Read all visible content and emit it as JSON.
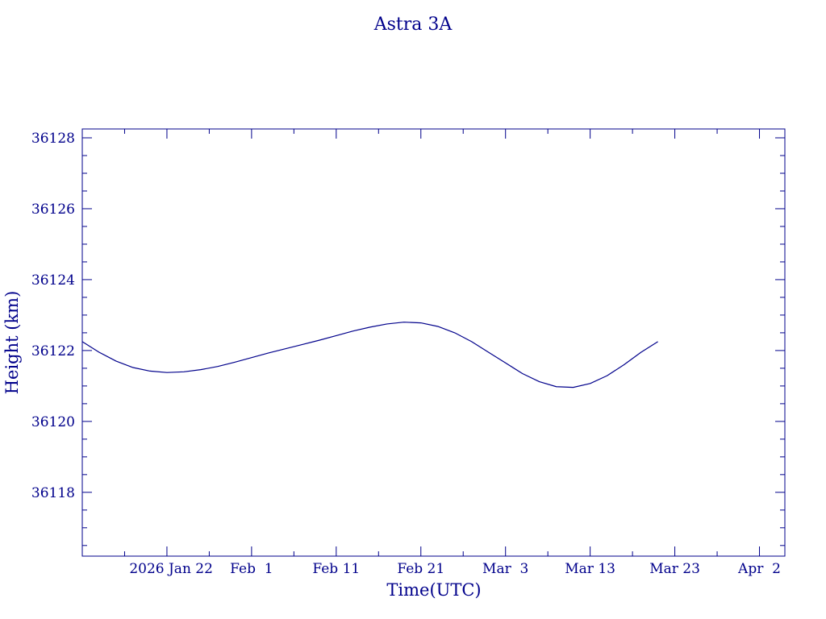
{
  "chart_data": {
    "type": "line",
    "title": "Astra 3A",
    "xlabel": "Time(UTC)",
    "ylabel": "Height (km)",
    "x_ticks": [
      {
        "date": "2026-01-22",
        "label": "2026 Jan 22"
      },
      {
        "date": "2026-02-01",
        "label": "Feb  1"
      },
      {
        "date": "2026-02-11",
        "label": "Feb 11"
      },
      {
        "date": "2026-02-21",
        "label": "Feb 21"
      },
      {
        "date": "2026-03-03",
        "label": "Mar  3"
      },
      {
        "date": "2026-03-13",
        "label": "Mar 13"
      },
      {
        "date": "2026-03-23",
        "label": "Mar 23"
      },
      {
        "date": "2026-04-02",
        "label": "Apr  2"
      }
    ],
    "xlim": [
      "2026-01-12",
      "2026-04-05"
    ],
    "y_ticks": [
      36118,
      36120,
      36122,
      36124,
      36126,
      36128
    ],
    "ylim": [
      36116.2,
      36128.25
    ],
    "grid": false,
    "series": [
      {
        "points": [
          {
            "x": "2026-01-12",
            "y": 36122.25
          },
          {
            "x": "2026-01-14",
            "y": 36121.95
          },
          {
            "x": "2026-01-16",
            "y": 36121.7
          },
          {
            "x": "2026-01-18",
            "y": 36121.52
          },
          {
            "x": "2026-01-20",
            "y": 36121.42
          },
          {
            "x": "2026-01-22",
            "y": 36121.38
          },
          {
            "x": "2026-01-24",
            "y": 36121.4
          },
          {
            "x": "2026-01-26",
            "y": 36121.46
          },
          {
            "x": "2026-01-28",
            "y": 36121.55
          },
          {
            "x": "2026-01-30",
            "y": 36121.67
          },
          {
            "x": "2026-02-01",
            "y": 36121.8
          },
          {
            "x": "2026-02-03",
            "y": 36121.93
          },
          {
            "x": "2026-02-05",
            "y": 36122.05
          },
          {
            "x": "2026-02-07",
            "y": 36122.17
          },
          {
            "x": "2026-02-09",
            "y": 36122.29
          },
          {
            "x": "2026-02-11",
            "y": 36122.42
          },
          {
            "x": "2026-02-13",
            "y": 36122.55
          },
          {
            "x": "2026-02-15",
            "y": 36122.66
          },
          {
            "x": "2026-02-17",
            "y": 36122.75
          },
          {
            "x": "2026-02-19",
            "y": 36122.8
          },
          {
            "x": "2026-02-21",
            "y": 36122.78
          },
          {
            "x": "2026-02-23",
            "y": 36122.68
          },
          {
            "x": "2026-02-25",
            "y": 36122.5
          },
          {
            "x": "2026-02-27",
            "y": 36122.25
          },
          {
            "x": "2026-03-01",
            "y": 36121.95
          },
          {
            "x": "2026-03-03",
            "y": 36121.65
          },
          {
            "x": "2026-03-05",
            "y": 36121.35
          },
          {
            "x": "2026-03-07",
            "y": 36121.12
          },
          {
            "x": "2026-03-09",
            "y": 36120.98
          },
          {
            "x": "2026-03-11",
            "y": 36120.96
          },
          {
            "x": "2026-03-13",
            "y": 36121.07
          },
          {
            "x": "2026-03-15",
            "y": 36121.29
          },
          {
            "x": "2026-03-17",
            "y": 36121.6
          },
          {
            "x": "2026-03-19",
            "y": 36121.95
          },
          {
            "x": "2026-03-21",
            "y": 36122.25
          }
        ]
      }
    ],
    "color": "#00008b"
  }
}
